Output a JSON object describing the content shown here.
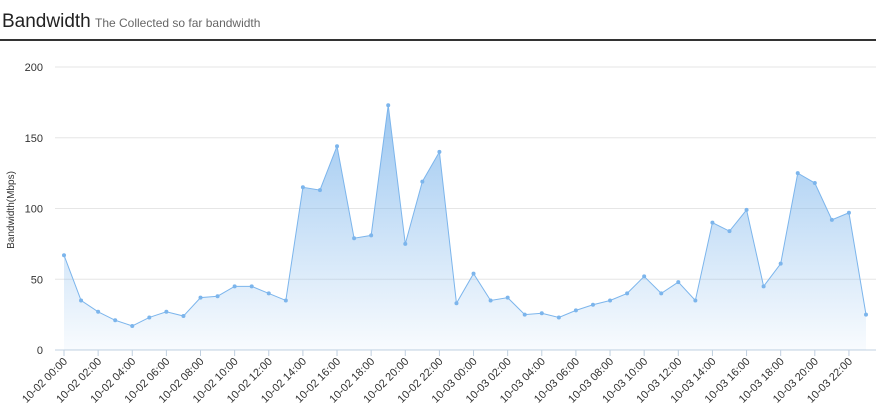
{
  "chart_data": {
    "type": "area",
    "title": "Bandwidth",
    "subtitle": "The Collected so far bandwidth",
    "y_label": "Bandwidth(Mbps)",
    "categories": [
      "10-02 00:00",
      null,
      "10-02 02:00",
      null,
      "10-02 04:00",
      null,
      "10-02 06:00",
      null,
      "10-02 08:00",
      null,
      "10-02 10:00",
      null,
      "10-02 12:00",
      null,
      "10-02 14:00",
      null,
      "10-02 16:00",
      null,
      "10-02 18:00",
      null,
      "10-02 20:00",
      null,
      "10-02 22:00",
      null,
      "10-03 00:00",
      null,
      "10-03 02:00",
      null,
      "10-03 04:00",
      null,
      "10-03 06:00",
      null,
      "10-03 08:00",
      null,
      "10-03 10:00",
      null,
      "10-03 12:00",
      null,
      "10-03 14:00",
      null,
      "10-03 16:00",
      null,
      "10-03 18:00",
      null,
      "10-03 20:00",
      null,
      "10-03 22:00",
      null
    ],
    "values": [
      67,
      35,
      27,
      21,
      17,
      23,
      27,
      24,
      37,
      38,
      45,
      45,
      40,
      35,
      115,
      113,
      144,
      79,
      81,
      173,
      75,
      119,
      140,
      33,
      54,
      35,
      37,
      25,
      26,
      23,
      28,
      32,
      35,
      40,
      52,
      40,
      48,
      35,
      90,
      84,
      99,
      45,
      61,
      125,
      118,
      92,
      97,
      25
    ],
    "color": "#7cb5ec",
    "ylim": [
      0,
      200
    ],
    "yticks": [
      0,
      50,
      100,
      150,
      200
    ],
    "grid": true
  }
}
